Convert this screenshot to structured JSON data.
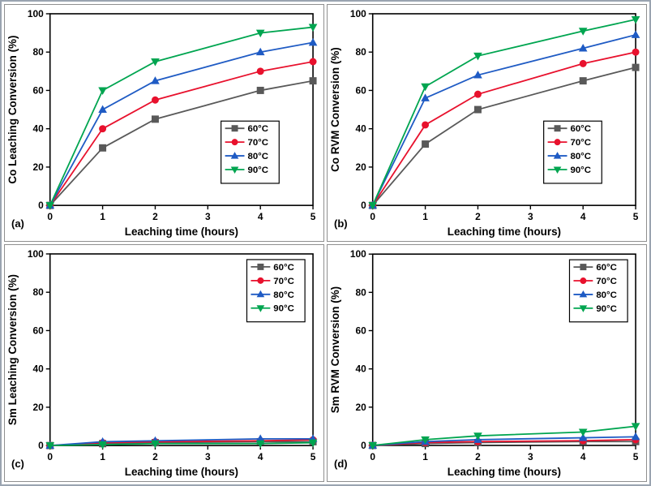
{
  "figure": {
    "background": "#ffffff",
    "border_color": "#9aa4b0"
  },
  "chart_data": [
    {
      "type": "line",
      "panel_label": "(a)",
      "xlabel": "Leaching time (hours)",
      "ylabel": "Co Leaching Conversion (%)",
      "xlim": [
        0,
        5
      ],
      "ylim": [
        0,
        100
      ],
      "xticks": [
        0,
        1,
        2,
        3,
        4,
        5
      ],
      "yticks": [
        0,
        20,
        40,
        60,
        80,
        100
      ],
      "grid": false,
      "legend_pos": "middle-right",
      "x": [
        0,
        1,
        2,
        4,
        5
      ],
      "series": [
        {
          "name": "60°C",
          "color": "#595959",
          "marker": "square",
          "values": [
            0,
            30,
            45,
            60,
            65
          ]
        },
        {
          "name": "70°C",
          "color": "#e8112d",
          "marker": "circle",
          "values": [
            0,
            40,
            55,
            70,
            75
          ]
        },
        {
          "name": "80°C",
          "color": "#1f5bc4",
          "marker": "triangle-up",
          "values": [
            0,
            50,
            65,
            80,
            85
          ]
        },
        {
          "name": "90°C",
          "color": "#00a550",
          "marker": "triangle-down",
          "values": [
            0,
            60,
            75,
            90,
            93
          ]
        }
      ]
    },
    {
      "type": "line",
      "panel_label": "(b)",
      "xlabel": "Leaching time (hours)",
      "ylabel": "Co RVM Conversion (%)",
      "xlim": [
        0,
        5
      ],
      "ylim": [
        0,
        100
      ],
      "xticks": [
        0,
        1,
        2,
        3,
        4,
        5
      ],
      "yticks": [
        0,
        20,
        40,
        60,
        80,
        100
      ],
      "grid": false,
      "legend_pos": "middle-right",
      "x": [
        0,
        1,
        2,
        4,
        5
      ],
      "series": [
        {
          "name": "60°C",
          "color": "#595959",
          "marker": "square",
          "values": [
            0,
            32,
            50,
            65,
            72
          ]
        },
        {
          "name": "70°C",
          "color": "#e8112d",
          "marker": "circle",
          "values": [
            0,
            42,
            58,
            74,
            80
          ]
        },
        {
          "name": "80°C",
          "color": "#1f5bc4",
          "marker": "triangle-up",
          "values": [
            0,
            56,
            68,
            82,
            89
          ]
        },
        {
          "name": "90°C",
          "color": "#00a550",
          "marker": "triangle-down",
          "values": [
            0,
            62,
            78,
            91,
            97
          ]
        }
      ]
    },
    {
      "type": "line",
      "panel_label": "(c)",
      "xlabel": "Leaching time (hours)",
      "ylabel": "Sm Leaching Conversion (%)",
      "xlim": [
        0,
        5
      ],
      "ylim": [
        0,
        100
      ],
      "xticks": [
        0,
        1,
        2,
        3,
        4,
        5
      ],
      "yticks": [
        0,
        20,
        40,
        60,
        80,
        100
      ],
      "grid": false,
      "legend_pos": "top-right",
      "x": [
        0,
        1,
        2,
        4,
        5
      ],
      "series": [
        {
          "name": "60°C",
          "color": "#595959",
          "marker": "square",
          "values": [
            0,
            1,
            1.5,
            2,
            2
          ]
        },
        {
          "name": "70°C",
          "color": "#e8112d",
          "marker": "circle",
          "values": [
            0,
            1.5,
            2,
            2.5,
            3
          ]
        },
        {
          "name": "80°C",
          "color": "#1f5bc4",
          "marker": "triangle-up",
          "values": [
            0,
            2,
            2.5,
            3.5,
            3.5
          ]
        },
        {
          "name": "90°C",
          "color": "#00a550",
          "marker": "triangle-down",
          "values": [
            0,
            0.5,
            1,
            1,
            1.5
          ]
        }
      ]
    },
    {
      "type": "line",
      "panel_label": "(d)",
      "xlabel": "Leaching time (hours)",
      "ylabel": "Sm RVM Conversion (%)",
      "xlim": [
        0,
        5
      ],
      "ylim": [
        0,
        100
      ],
      "xticks": [
        0,
        1,
        2,
        3,
        4,
        5
      ],
      "yticks": [
        0,
        20,
        40,
        60,
        80,
        100
      ],
      "grid": false,
      "legend_pos": "top-right",
      "x": [
        0,
        1,
        2,
        4,
        5
      ],
      "series": [
        {
          "name": "60°C",
          "color": "#595959",
          "marker": "square",
          "values": [
            0,
            1,
            1.5,
            2,
            2
          ]
        },
        {
          "name": "70°C",
          "color": "#e8112d",
          "marker": "circle",
          "values": [
            0,
            1.5,
            2,
            2.5,
            3
          ]
        },
        {
          "name": "80°C",
          "color": "#1f5bc4",
          "marker": "triangle-up",
          "values": [
            0,
            2,
            3,
            4,
            4.5
          ]
        },
        {
          "name": "90°C",
          "color": "#00a550",
          "marker": "triangle-down",
          "values": [
            0,
            3,
            5,
            7,
            10
          ]
        }
      ]
    }
  ]
}
